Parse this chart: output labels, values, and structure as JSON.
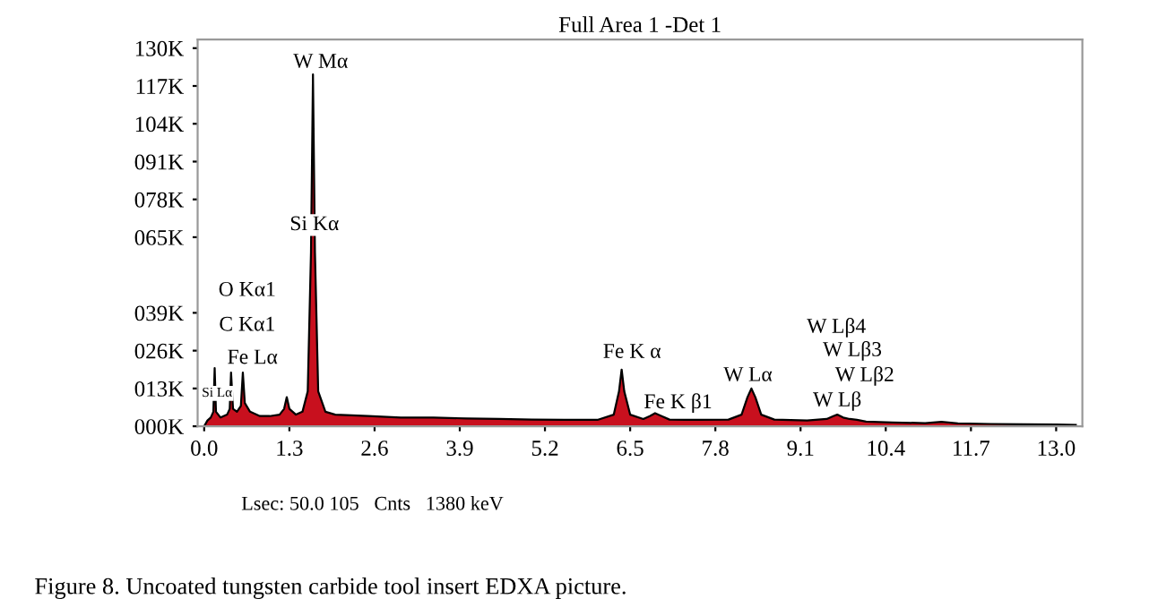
{
  "chart_data": {
    "type": "area",
    "title": "Full Area 1 -Det 1",
    "series": [
      {
        "color": "#c8101e",
        "x": [
          0.0,
          0.05,
          0.1,
          0.14,
          0.16,
          0.18,
          0.25,
          0.35,
          0.39,
          0.41,
          0.44,
          0.5,
          0.56,
          0.59,
          0.62,
          0.7,
          0.85,
          1.0,
          1.15,
          1.22,
          1.26,
          1.3,
          1.4,
          1.5,
          1.58,
          1.63,
          1.66,
          1.69,
          1.74,
          1.85,
          2.0,
          2.5,
          3.0,
          3.5,
          4.0,
          4.5,
          5.0,
          5.5,
          6.0,
          6.25,
          6.33,
          6.37,
          6.41,
          6.5,
          6.7,
          6.8,
          6.88,
          6.98,
          7.1,
          7.5,
          8.0,
          8.2,
          8.29,
          8.35,
          8.41,
          8.5,
          8.7,
          9.2,
          9.5,
          9.6,
          9.66,
          9.75,
          9.85,
          9.96,
          10.1,
          10.5,
          11.0,
          11.25,
          11.5,
          12.0,
          12.5,
          13.0,
          13.3
        ],
        "values": [
          0,
          2,
          3,
          5,
          20,
          5,
          3,
          4,
          6,
          18.5,
          6,
          5,
          7,
          18.5,
          8,
          5,
          3.5,
          3.5,
          4,
          6,
          10,
          6,
          4,
          5,
          12,
          60,
          121,
          60,
          12,
          5,
          4,
          3.5,
          3,
          3,
          2.7,
          2.5,
          2.3,
          2.2,
          2.2,
          4,
          12,
          19.5,
          12,
          4,
          2.5,
          3.5,
          4.5,
          3.5,
          2.3,
          2.2,
          2.3,
          4,
          10,
          13,
          10,
          4,
          2.3,
          2.0,
          2.5,
          3.5,
          4,
          3,
          2.5,
          2.2,
          1.6,
          1.3,
          1.1,
          1.5,
          1.0,
          0.8,
          0.7,
          0.6,
          0.5
        ]
      }
    ],
    "xlim": [
      -0.1,
      13.4
    ],
    "ylim": [
      0,
      133
    ],
    "xticks": [
      {
        "value": 0,
        "label": "0.0"
      },
      {
        "value": 1.3,
        "label": "1.3"
      },
      {
        "value": 2.6,
        "label": "2.6"
      },
      {
        "value": 3.9,
        "label": "3.9"
      },
      {
        "value": 5.2,
        "label": "5.2"
      },
      {
        "value": 6.5,
        "label": "6.5"
      },
      {
        "value": 7.8,
        "label": "7.8"
      },
      {
        "value": 9.1,
        "label": "9.1"
      },
      {
        "value": 10.4,
        "label": "10.4"
      },
      {
        "value": 11.7,
        "label": "11.7"
      },
      {
        "value": 13,
        "label": "13.0"
      }
    ],
    "yticks": [
      {
        "value": 0,
        "label": "000K"
      },
      {
        "value": 13,
        "label": "013K"
      },
      {
        "value": 26,
        "label": "026K"
      },
      {
        "value": 39,
        "label": "039K"
      },
      {
        "value": 65,
        "label": "065K"
      },
      {
        "value": 78,
        "label": "078K"
      },
      {
        "value": 91,
        "label": "091K"
      },
      {
        "value": 104,
        "label": "104K"
      },
      {
        "value": 117,
        "label": "117K"
      },
      {
        "value": 130,
        "label": "130K"
      }
    ],
    "grid": false,
    "legend": false,
    "annotations": [
      "W Mα",
      "Si Kα",
      "O Kα1",
      "C Kα1",
      "Fe Lα",
      "Si Lα",
      "Fe K α",
      "Fe K β1",
      "W Lα",
      "W Lβ4",
      "W Lβ3",
      "W Lβ2",
      "W Lβ",
      "Lsec: 50.0 105   Cnts   1380 keV",
      "Figure 8. Uncoated tungsten carbide tool insert EDXA picture."
    ]
  }
}
